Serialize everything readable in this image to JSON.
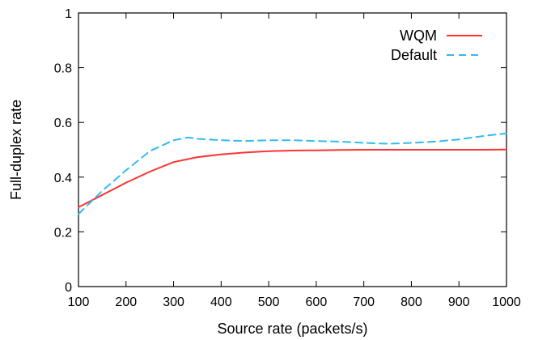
{
  "chart_data": {
    "type": "line",
    "xlabel": "Source rate (packets/s)",
    "ylabel": "Full-duplex rate",
    "xlim": [
      100,
      1000
    ],
    "ylim": [
      0,
      1
    ],
    "xticks": [
      "100",
      "200",
      "300",
      "400",
      "500",
      "600",
      "700",
      "800",
      "900",
      "1000"
    ],
    "yticks": [
      "0",
      "0.2",
      "0.4",
      "0.6",
      "0.8",
      "1"
    ],
    "grid": false,
    "legend_position": "top-right",
    "series": [
      {
        "name": "WQM",
        "color": "#ff3333",
        "style": "solid",
        "x": [
          100,
          150,
          200,
          250,
          300,
          350,
          400,
          450,
          500,
          550,
          600,
          650,
          700,
          750,
          800,
          850,
          900,
          950,
          1000
        ],
        "y": [
          0.29,
          0.335,
          0.38,
          0.42,
          0.455,
          0.473,
          0.483,
          0.49,
          0.495,
          0.497,
          0.498,
          0.499,
          0.5,
          0.5,
          0.5,
          0.5,
          0.5,
          0.5,
          0.501
        ]
      },
      {
        "name": "Default",
        "color": "#33bbee",
        "style": "dashed",
        "x": [
          100,
          150,
          200,
          250,
          300,
          330,
          350,
          400,
          450,
          500,
          550,
          600,
          650,
          700,
          750,
          800,
          850,
          900,
          950,
          1000
        ],
        "y": [
          0.265,
          0.35,
          0.425,
          0.495,
          0.535,
          0.545,
          0.54,
          0.535,
          0.532,
          0.535,
          0.535,
          0.532,
          0.53,
          0.525,
          0.522,
          0.525,
          0.53,
          0.538,
          0.55,
          0.56
        ]
      }
    ]
  }
}
